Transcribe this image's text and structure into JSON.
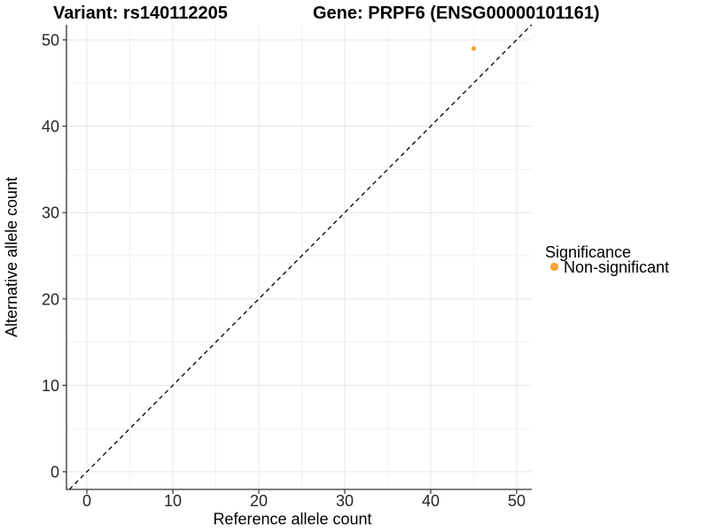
{
  "titles": {
    "variant": "Variant: rs140112205",
    "gene": "Gene: PRPF6 (ENSG00000101161)"
  },
  "axes": {
    "x_label": "Reference allele count",
    "y_label": "Alternative allele count",
    "x_tick_labels": [
      "0",
      "10",
      "20",
      "30",
      "40",
      "50"
    ],
    "y_tick_labels": [
      "0",
      "10",
      "20",
      "30",
      "40",
      "50"
    ]
  },
  "legend": {
    "title": "Significance",
    "items": [
      {
        "label": "Non-significant",
        "color": "#F9A232"
      }
    ]
  },
  "colors": {
    "point_orange": "#F9A232",
    "grid_major": "#E7E7E7",
    "grid_minor": "#F1F1F1",
    "axis_line": "#333333",
    "reference_line": "#000000",
    "background": "#FFFFFF"
  },
  "chart_data": {
    "type": "scatter",
    "title": "Variant: rs140112205 | Gene: PRPF6 (ENSG00000101161)",
    "xlabel": "Reference allele count",
    "ylabel": "Alternative allele count",
    "xlim": [
      -2.4,
      51.8
    ],
    "ylim": [
      -2.1,
      51.7
    ],
    "x_ticks": [
      0,
      10,
      20,
      30,
      40,
      50
    ],
    "y_ticks": [
      0,
      10,
      20,
      30,
      40,
      50
    ],
    "grid": "major and minor gridlines, light gray on white",
    "legend_position": "right",
    "reference_line": {
      "kind": "identity y = x",
      "style": "dashed",
      "color": "#000000"
    },
    "series": [
      {
        "name": "Non-significant",
        "color": "#F9A232",
        "points": [
          {
            "x": 45,
            "y": 49
          }
        ]
      }
    ]
  }
}
